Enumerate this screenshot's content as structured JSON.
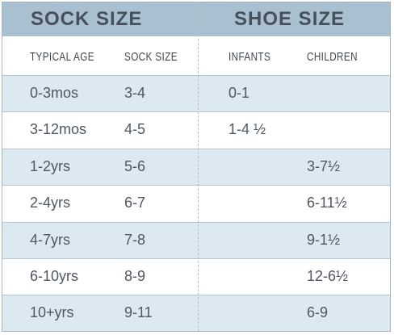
{
  "header": {
    "groups": [
      "SOCK SIZE",
      "SHOE SIZE"
    ]
  },
  "table": {
    "columns": [
      "TYPICAL AGE",
      "SOCK SIZE",
      "INFANTS",
      "CHILDREN"
    ],
    "rows": [
      [
        "0-3mos",
        "3-4",
        "0-1",
        null
      ],
      [
        "3-12mos",
        "4-5",
        "1-4 ½",
        null
      ],
      [
        "1-2yrs",
        "5-6",
        null,
        "3-7½"
      ],
      [
        "2-4yrs",
        "6-7",
        null,
        "6-11½"
      ],
      [
        "4-7yrs",
        "7-8",
        null,
        "9-1½"
      ],
      [
        "6-10yrs",
        "8-9",
        null,
        "12-6½"
      ],
      [
        "10+yrs",
        "9-11",
        null,
        "6-9"
      ]
    ]
  }
}
